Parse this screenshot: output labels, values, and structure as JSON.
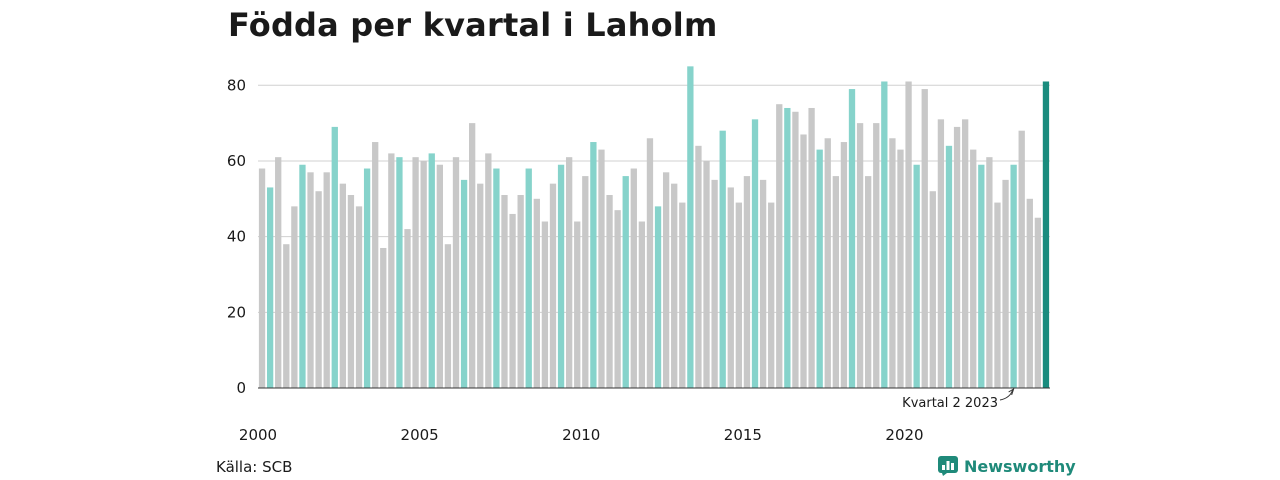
{
  "header": {
    "title": "Födda per kvartal i Laholm"
  },
  "footer": {
    "source": "Källa: SCB",
    "brand": "Newsworthy"
  },
  "colors": {
    "default_bar": "#c8c8c8",
    "quarter_bar": "#86d3cb",
    "latest_bar": "#1a8c7e",
    "gridline": "#d0d0d0"
  },
  "icons": {
    "brand": "bar-chart-logo-icon"
  },
  "chart_data": {
    "type": "bar",
    "title": "Födda per kvartal i Laholm",
    "xlabel": "",
    "ylabel": "",
    "ylim": [
      0,
      88
    ],
    "yticks": [
      0,
      20,
      40,
      60,
      80
    ],
    "xticks": [
      {
        "label": "2000",
        "index": 0
      },
      {
        "label": "2005",
        "index": 20
      },
      {
        "label": "2010",
        "index": 40
      },
      {
        "label": "2015",
        "index": 60
      },
      {
        "label": "2020",
        "index": 80
      }
    ],
    "grid": true,
    "highlight": "second quarter of each year",
    "annotation": {
      "text": "Kvartal 2 2023",
      "index": 93
    },
    "values": [
      58,
      53,
      61,
      38,
      48,
      59,
      57,
      52,
      57,
      69,
      54,
      51,
      48,
      58,
      65,
      37,
      62,
      61,
      42,
      61,
      60,
      62,
      59,
      38,
      61,
      55,
      70,
      54,
      62,
      58,
      51,
      46,
      51,
      58,
      50,
      44,
      54,
      59,
      61,
      44,
      56,
      65,
      63,
      51,
      47,
      56,
      58,
      44,
      66,
      48,
      57,
      54,
      49,
      85,
      64,
      60,
      55,
      68,
      53,
      49,
      56,
      71,
      55,
      49,
      75,
      74,
      73,
      67,
      74,
      63,
      66,
      56,
      65,
      79,
      70,
      56,
      70,
      81,
      66,
      63,
      81,
      59,
      79,
      52,
      71,
      64,
      69,
      71,
      63,
      59,
      61,
      49,
      55,
      59,
      68,
      50,
      45,
      81
    ]
  }
}
